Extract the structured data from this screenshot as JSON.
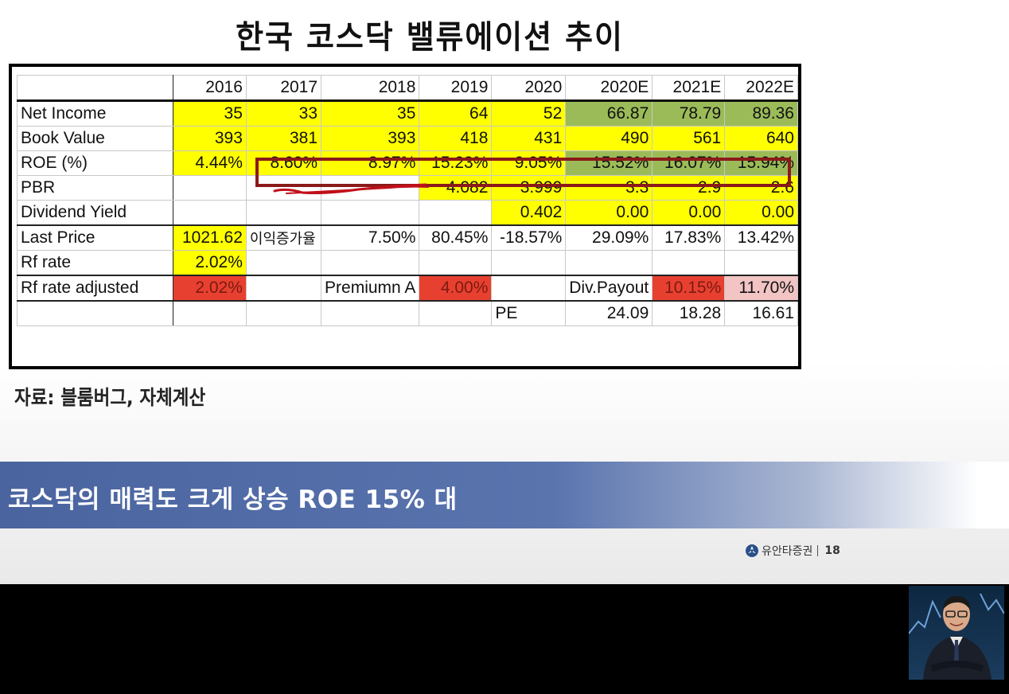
{
  "slide": {
    "title": "한국 코스닥 밸류에이션 추이",
    "source_note": "자료: 블룸버그, 자체계산",
    "banner_text": "코스닥의 매력도 크게 상승 ROE 15% 대",
    "footer": {
      "brand": "유안타증권",
      "page": "18"
    }
  },
  "table": {
    "years": [
      "2016",
      "2017",
      "2018",
      "2019",
      "2020",
      "2020E",
      "2021E",
      "2022E"
    ],
    "rows": [
      {
        "label": "Net Income",
        "cells": [
          "35",
          "33",
          "35",
          "64",
          "52",
          "66.87",
          "78.79",
          "89.36"
        ]
      },
      {
        "label": "Book Value",
        "cells": [
          "393",
          "381",
          "393",
          "418",
          "431",
          "490",
          "561",
          "640"
        ]
      },
      {
        "label": "ROE (%)",
        "cells": [
          "4.44%",
          "8.60%",
          "8.97%",
          "15.23%",
          "9.05%",
          "15.52%",
          "16.07%",
          "15.94%"
        ]
      },
      {
        "label": "PBR",
        "cells": [
          "",
          "",
          "",
          "4.082",
          "3.999",
          "3.3",
          "2.9",
          "2.6"
        ]
      },
      {
        "label": "Dividend Yield",
        "cells": [
          "",
          "",
          "",
          "",
          "0.402",
          "0.00",
          "0.00",
          "0.00"
        ]
      },
      {
        "label": "Last Price",
        "cells": [
          "1021.62",
          "이익증가율",
          "7.50%",
          "80.45%",
          "-18.57%",
          "29.09%",
          "17.83%",
          "13.42%"
        ]
      },
      {
        "label": "Rf rate",
        "cells": [
          "2.02%",
          "",
          "",
          "",
          "",
          "",
          "",
          ""
        ]
      },
      {
        "label": "Rf rate adjusted",
        "cells": [
          "2.02%",
          "",
          "Premiumn A",
          "4.00%",
          "",
          "Div.Payout",
          "10.15%",
          "11.70%"
        ]
      },
      {
        "label": "",
        "cells": [
          "",
          "",
          "",
          "",
          "PE",
          "24.09",
          "18.28",
          "16.61"
        ]
      }
    ]
  },
  "colors": {
    "yellow": "#ffff00",
    "green": "#9bbb59",
    "red": "#e84030",
    "pink": "#f2c4c4",
    "highlight_box": "#8b1a1a",
    "banner": "#4a64a0"
  },
  "icons": {
    "brand_logo": "yuanta-logo-icon"
  }
}
